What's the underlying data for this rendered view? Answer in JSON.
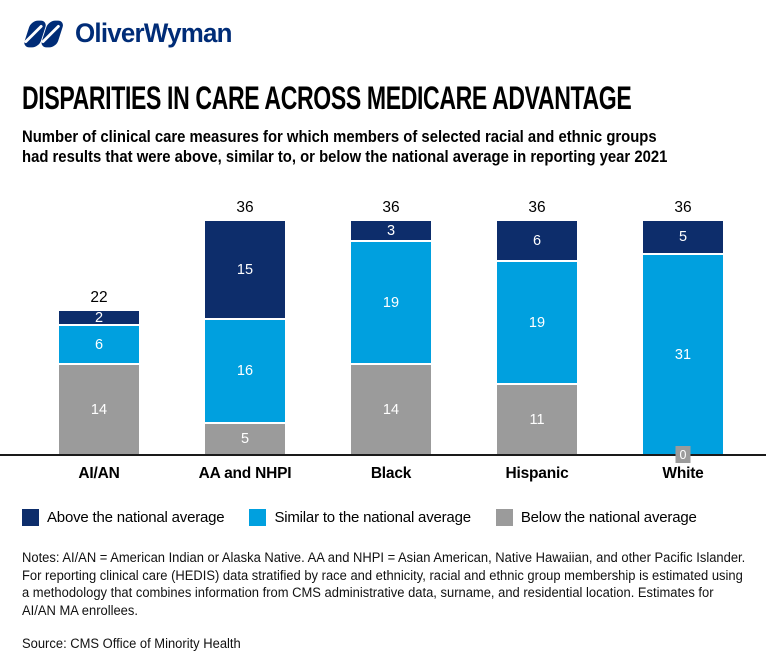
{
  "brand": {
    "logo_text": "OliverWyman",
    "brand_color": "#002C77"
  },
  "header": {
    "title": "DISPARITIES IN CARE ACROSS MEDICARE ADVANTAGE",
    "subtitle_line1": "Number of clinical care measures for which members of selected racial and ethnic groups",
    "subtitle_line2": "had results that were above, similar to, or below the national average in reporting year 2021"
  },
  "chart_data": {
    "type": "bar",
    "stacked": true,
    "title": "DISPARITIES IN CARE ACROSS MEDICARE ADVANTAGE",
    "subtitle": "Number of clinical care measures for which members of selected racial and ethnic groups had results that were above, similar to, or below the national average in reporting year 2021",
    "categories": [
      "AI/AN",
      "AA and NHPI",
      "Black",
      "Hispanic",
      "White"
    ],
    "totals": [
      22,
      36,
      36,
      36,
      36
    ],
    "series": [
      {
        "name": "Above the national average",
        "color": "#0D2D6B",
        "values": [
          2,
          15,
          3,
          6,
          5
        ]
      },
      {
        "name": "Similar to the national average",
        "color": "#00A0DF",
        "values": [
          6,
          16,
          19,
          19,
          31
        ]
      },
      {
        "name": "Below the national average",
        "color": "#9B9B9B",
        "values": [
          14,
          5,
          14,
          11,
          0
        ]
      }
    ],
    "xlabel": "",
    "ylabel": "",
    "ylim": [
      0,
      36
    ],
    "grid": false,
    "legend_position": "bottom",
    "value_labels": "inside, white",
    "total_labels": "above bars",
    "axis_line_color": "#1a1a1a"
  },
  "notes": {
    "lines": [
      "Notes: AI/AN = American Indian or Alaska Native. AA and NHPI = Asian American, Native Hawaiian, and other Pacific Islander.",
      "For reporting clinical care (HEDIS) data stratified by race and ethnicity, racial and ethnic group membership is estimated using",
      "a methodology that combines information from CMS administrative data, surname, and residential location. Estimates for",
      "AI/AN MA enrollees."
    ]
  },
  "source": "Source: CMS Office of Minority Health"
}
